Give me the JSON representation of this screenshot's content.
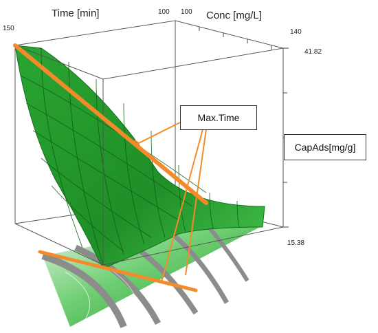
{
  "chart_data": {
    "type": "surface3d",
    "title": "",
    "x_axis": {
      "label": "Time [min]",
      "range": [
        100,
        150
      ]
    },
    "y_axis": {
      "label": "Conc [mg/L]",
      "range": [
        100,
        140
      ]
    },
    "z_axis": {
      "label": "CapAds[mg/g]",
      "range": [
        15.38,
        41.82
      ]
    },
    "tick_labels": {
      "time_min": "100",
      "time_max": "150",
      "conc_min": "100",
      "conc_max": "140",
      "z_max": "41.82",
      "z_min": "15.38"
    },
    "annotations": [
      {
        "text": "Max.Time",
        "type": "callout-box"
      }
    ],
    "colors": {
      "surface": "#1f9a2a",
      "surface_dark": "#0f6e18",
      "contour_floor": "#2bb336",
      "contour_band": "#8c8c8c",
      "ridge_line": "#f58a2a"
    }
  }
}
